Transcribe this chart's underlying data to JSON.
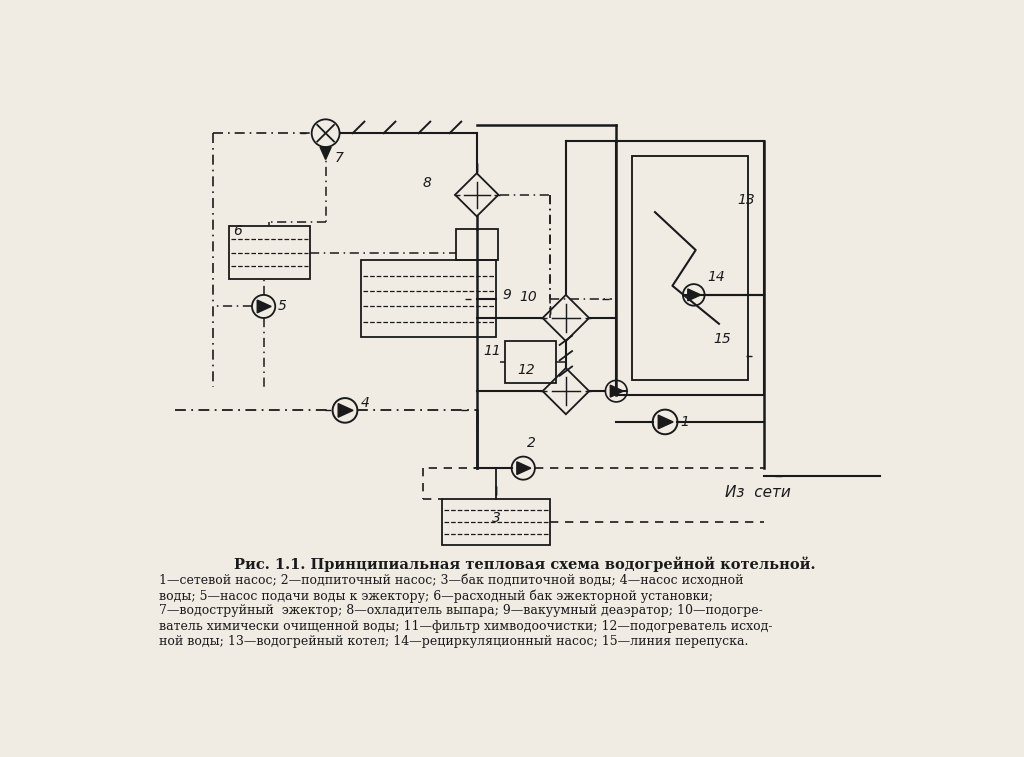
{
  "title": "Рис. 1.1. Принципиальная тепловая схема водогрейной котельной.",
  "caption_lines": [
    "1—сетевой насос; 2—подпиточный насос; 3—бак подпиточной воды; 4—насос исходной",
    "воды; 5—насос подачи воды к эжектору; 6—расходный бак эжекторной установки;",
    "7—водоструйный  эжектор; 8—охладитель выпара; 9—вакуумный деаэратор; 10—подогре-",
    "ватель химически очищенной воды; 11—фильтр химводоочистки; 12—подогреватель исход-",
    "ной воды; 13—водогрейный котел; 14—рециркуляционный насос; 15—линия перепуска."
  ],
  "bg_color": "#f0ece4",
  "line_color": "#1a1a1a",
  "text_color": "#1a1a1a"
}
